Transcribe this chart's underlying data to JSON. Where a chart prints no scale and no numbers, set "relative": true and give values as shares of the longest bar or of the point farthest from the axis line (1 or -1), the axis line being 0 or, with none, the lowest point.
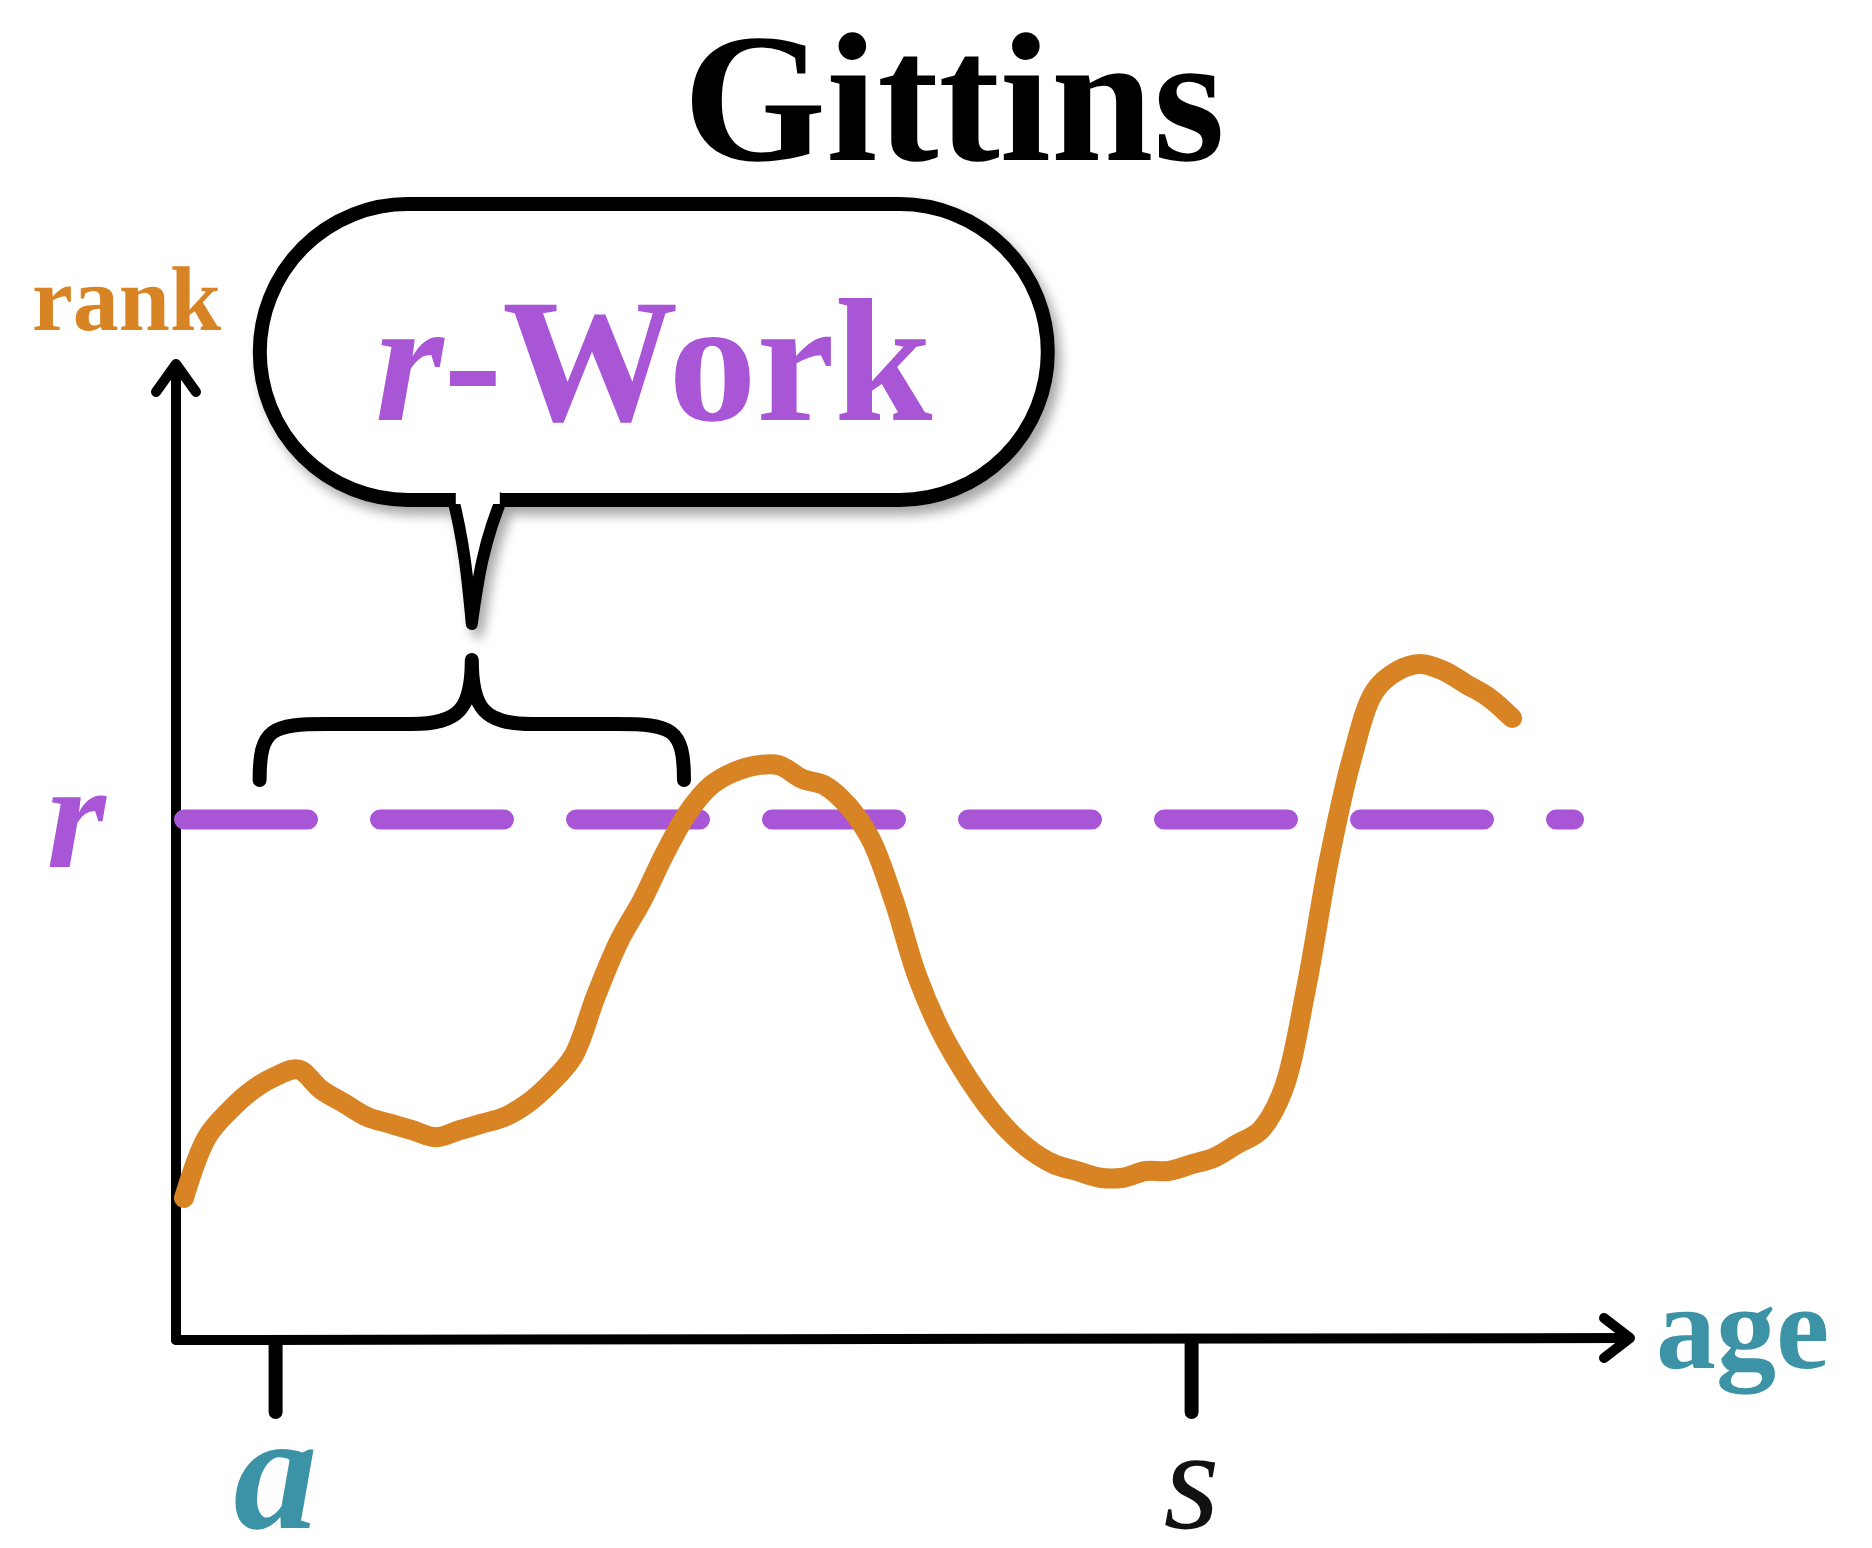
{
  "chart_data": {
    "type": "line",
    "title": "Gittins",
    "xlabel": "age",
    "ylabel": "rank",
    "relative": true,
    "categories": [
      null,
      null,
      null,
      null,
      "a",
      null,
      null,
      null,
      null,
      null,
      null,
      null,
      null,
      null,
      null,
      null,
      null,
      null,
      null,
      null,
      null,
      null,
      null,
      null,
      null,
      null,
      null,
      null,
      null,
      null,
      null,
      null,
      null,
      null,
      null,
      null,
      null,
      null,
      null,
      null,
      null,
      null,
      null,
      null,
      "s",
      null,
      null,
      null,
      null,
      null,
      null,
      null,
      null,
      null,
      null,
      null,
      null,
      null,
      null,
      null,
      null
    ],
    "series": [
      {
        "color": "#d88424",
        "values": [
          0.21,
          0.3,
          0.34,
          0.37,
          0.39,
          0.4,
          0.37,
          0.35,
          0.33,
          0.32,
          0.31,
          0.3,
          0.31,
          0.32,
          0.33,
          0.35,
          0.38,
          0.42,
          0.51,
          0.59,
          0.65,
          0.72,
          0.78,
          0.82,
          0.84,
          0.85,
          0.85,
          0.83,
          0.82,
          0.79,
          0.74,
          0.65,
          0.54,
          0.46,
          0.4,
          0.35,
          0.31,
          0.28,
          0.26,
          0.25,
          0.24,
          0.24,
          0.25,
          0.25,
          0.26,
          0.27,
          0.29,
          0.31,
          0.37,
          0.52,
          0.71,
          0.86,
          0.96,
          0.99,
          1,
          0.99,
          0.97,
          0.95,
          0.92,
          null,
          null
        ]
      }
    ],
    "ref_lines": [
      {
        "axis": "y",
        "value": 0.77,
        "label": "r",
        "color": "#a855d6",
        "line_style": "dashed"
      }
    ],
    "annotations": [
      "r-Work"
    ],
    "line_style": "solid"
  }
}
